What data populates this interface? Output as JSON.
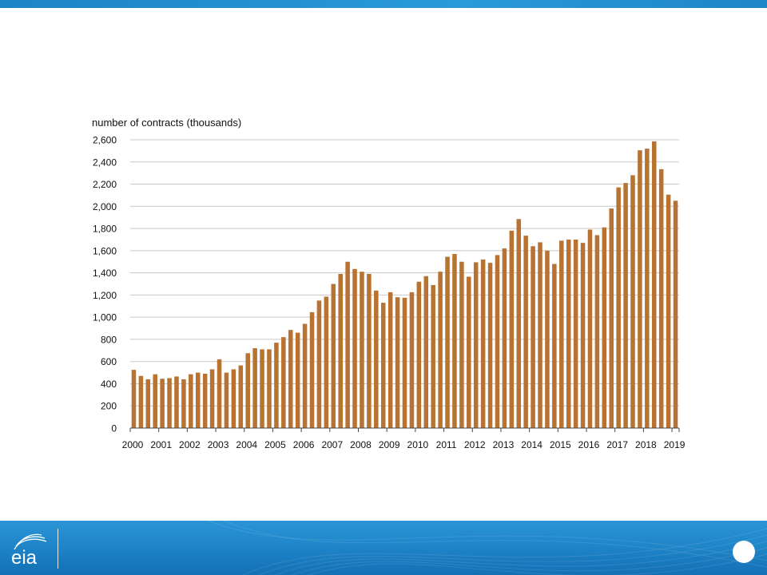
{
  "header": {
    "bar_color": "#1f8ed1"
  },
  "footer": {
    "logo_text": "eia",
    "logo_icon": "eia-logo-icon",
    "page_number": "",
    "background_color": "#1f86c9"
  },
  "chart_data": {
    "type": "bar",
    "title": "",
    "ylabel": "number of contracts (thousands)",
    "xlabel": "",
    "ylim": [
      0,
      2600
    ],
    "yticks": [
      0,
      200,
      400,
      600,
      800,
      1000,
      1200,
      1400,
      1600,
      1800,
      2000,
      2200,
      2400,
      2600
    ],
    "ytick_labels": [
      "0",
      "200",
      "400",
      "600",
      "800",
      "1,000",
      "1,200",
      "1,400",
      "1,600",
      "1,800",
      "2,000",
      "2,200",
      "2,400",
      "2,600"
    ],
    "year_labels": [
      "2000",
      "2001",
      "2002",
      "2003",
      "2004",
      "2005",
      "2006",
      "2007",
      "2008",
      "2009",
      "2010",
      "2011",
      "2012",
      "2013",
      "2014",
      "2015",
      "2016",
      "2017",
      "2018",
      "2019"
    ],
    "grid": true,
    "bar_color": "#b87333",
    "values": [
      525,
      470,
      440,
      485,
      445,
      450,
      465,
      440,
      485,
      500,
      490,
      530,
      620,
      500,
      530,
      565,
      675,
      720,
      710,
      710,
      770,
      820,
      885,
      860,
      940,
      1045,
      1150,
      1185,
      1300,
      1390,
      1500,
      1435,
      1410,
      1390,
      1240,
      1130,
      1225,
      1180,
      1175,
      1225,
      1320,
      1370,
      1290,
      1410,
      1545,
      1570,
      1500,
      1365,
      1495,
      1520,
      1490,
      1560,
      1620,
      1780,
      1885,
      1735,
      1640,
      1675,
      1600,
      1480,
      1690,
      1700,
      1700,
      1670,
      1790,
      1740,
      1810,
      1980,
      2170,
      2210,
      2280,
      2505,
      2520,
      2585,
      2335,
      2105,
      2050
    ]
  }
}
